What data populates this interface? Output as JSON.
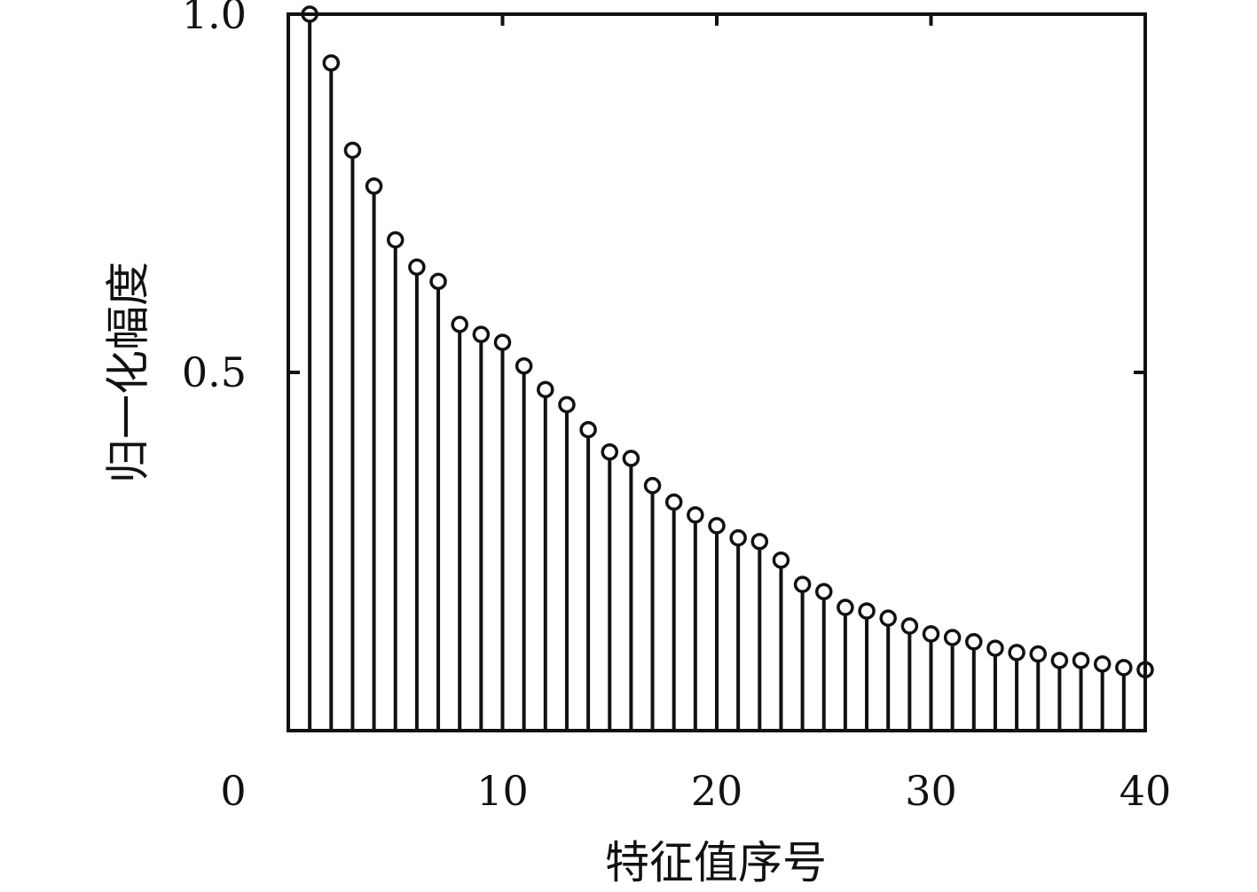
{
  "chart_data": {
    "type": "stem",
    "title": "",
    "xlabel": "特征值序号",
    "ylabel": "归一化幅度",
    "xlim": [
      0,
      40
    ],
    "ylim": [
      0,
      1.0
    ],
    "grid": false,
    "legend": "none",
    "x_ticks": [
      {
        "value": 0,
        "label": "0"
      },
      {
        "value": 10,
        "label": "10"
      },
      {
        "value": 20,
        "label": "20"
      },
      {
        "value": 30,
        "label": "30"
      },
      {
        "value": 40,
        "label": "40"
      }
    ],
    "y_ticks": [
      {
        "value": 0.5,
        "label": "0.5"
      },
      {
        "value": 1.0,
        "label": "1.0"
      }
    ],
    "colors": {
      "stem": "#111111",
      "marker": "#111111",
      "axes": "#111111"
    },
    "marker": "circle",
    "series": [
      {
        "x": [
          1,
          2,
          3,
          4,
          5,
          6,
          7,
          8,
          9,
          10,
          11,
          12,
          13,
          14,
          15,
          16,
          17,
          18,
          19,
          20,
          21,
          22,
          23,
          24,
          25,
          26,
          27,
          28,
          29,
          30,
          31,
          32,
          33,
          34,
          35,
          36,
          37,
          38,
          39,
          40
        ],
        "values": [
          1.0,
          0.932,
          0.81,
          0.76,
          0.685,
          0.647,
          0.627,
          0.567,
          0.553,
          0.542,
          0.509,
          0.476,
          0.455,
          0.42,
          0.389,
          0.38,
          0.342,
          0.319,
          0.301,
          0.286,
          0.269,
          0.264,
          0.238,
          0.204,
          0.194,
          0.172,
          0.167,
          0.157,
          0.146,
          0.135,
          0.13,
          0.124,
          0.115,
          0.109,
          0.107,
          0.098,
          0.098,
          0.093,
          0.088,
          0.085
        ]
      }
    ]
  }
}
